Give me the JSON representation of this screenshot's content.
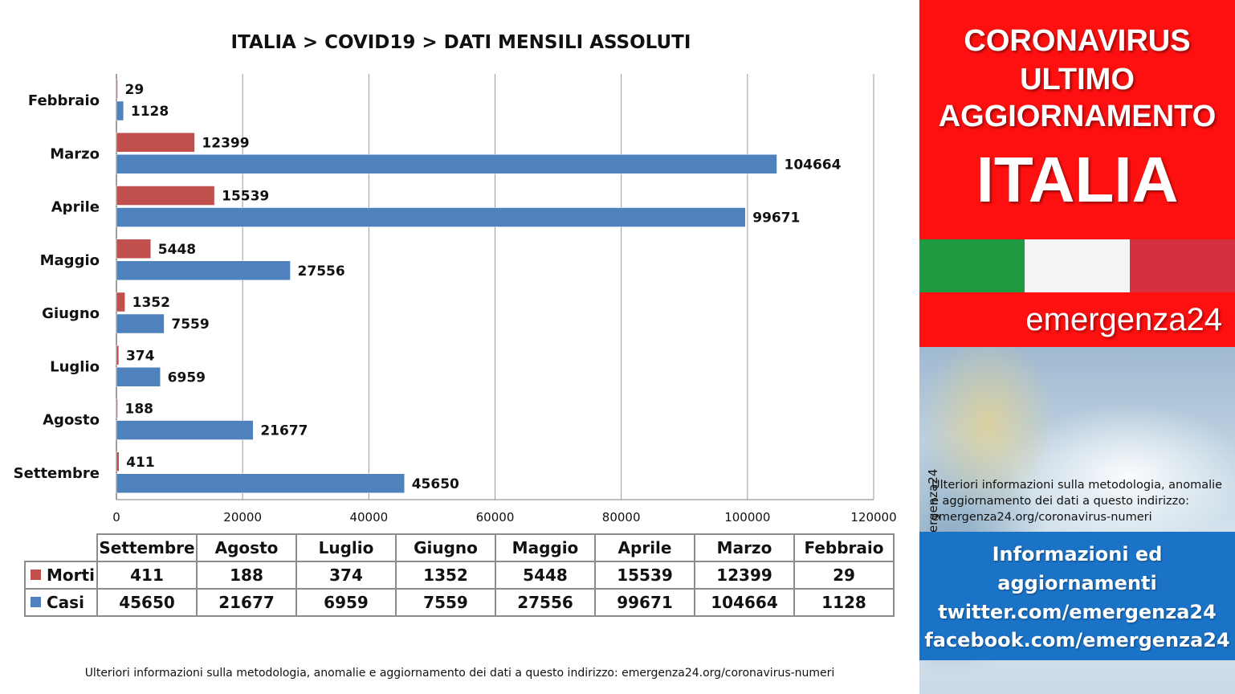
{
  "chart_data": {
    "type": "bar",
    "orientation": "horizontal",
    "title": "ITALIA >  COVID19 > DATI MENSILI  ASSOLUTI",
    "categories": [
      "Febbraio",
      "Marzo",
      "Aprile",
      "Maggio",
      "Giugno",
      "Luglio",
      "Agosto",
      "Settembre"
    ],
    "series": [
      {
        "name": "Morti",
        "color": "#c0504d",
        "values": [
          29,
          12399,
          15539,
          5448,
          1352,
          374,
          188,
          411
        ]
      },
      {
        "name": "Casi",
        "color": "#4f81bd",
        "values": [
          1128,
          104664,
          99671,
          27556,
          7559,
          6959,
          21677,
          45650
        ]
      }
    ],
    "xlim": [
      0,
      120000
    ],
    "xticks": [
      "0",
      "20000",
      "40000",
      "60000",
      "80000",
      "100000",
      "120000"
    ],
    "grid": true
  },
  "table": {
    "columns": [
      "Settembre",
      "Agosto",
      "Luglio",
      "Giugno",
      "Maggio",
      "Aprile",
      "Marzo",
      "Febbraio"
    ],
    "rows": [
      {
        "label": "Morti",
        "color": "#c0504d",
        "values": [
          "411",
          "188",
          "374",
          "1352",
          "5448",
          "15539",
          "12399",
          "29"
        ]
      },
      {
        "label": "Casi",
        "color": "#4f81bd",
        "values": [
          "45650",
          "21677",
          "6959",
          "7559",
          "27556",
          "99671",
          "104664",
          "1128"
        ]
      }
    ]
  },
  "footer": "Ulteriori informazioni sulla metodologia, anomalie e aggiornamento dei dati a questo indirizzo: emergenza24.org/coronavirus-numeri",
  "sidebar": {
    "line1": "CORONAVIRUS",
    "line2": "ULTIMO",
    "line3": "AGGIORNAMENTO",
    "line4": "ITALIA",
    "brand": "emergenza24",
    "handle": "@emergenza24",
    "info": "Ulteriori informazioni sulla metodologia, anomalie e aggiornamento dei dati a questo indirizzo: emergenza24.org/coronavirus-numeri",
    "blue1": "Informazioni ed",
    "blue2": "aggiornamenti",
    "blue3": "twitter.com/emergenza24",
    "blue4": "facebook.com/emergenza24"
  }
}
